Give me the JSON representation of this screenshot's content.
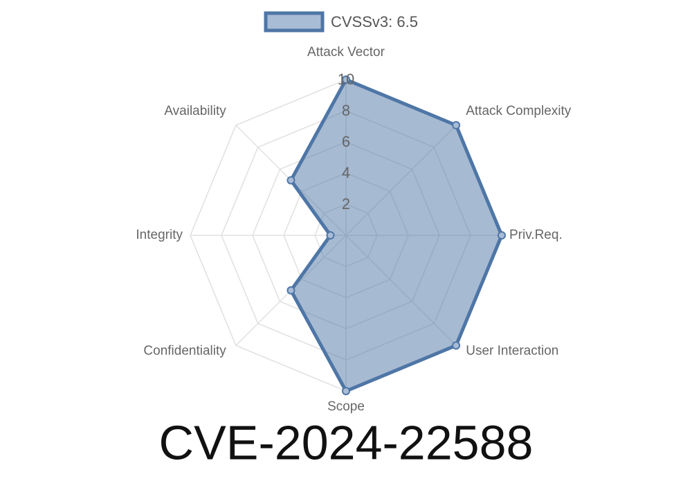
{
  "chart_data": {
    "type": "radar",
    "title": "CVE-2024-22588",
    "categories": [
      "Attack Vector",
      "Attack Complexity",
      "Priv.Req.",
      "User Interaction",
      "Scope",
      "Confidentiality",
      "Integrity",
      "Availability"
    ],
    "series": [
      {
        "name": "CVSSv3: 6.5",
        "color": "#4e76a6",
        "values": [
          10,
          10,
          10,
          10,
          10,
          5,
          1,
          5
        ]
      }
    ],
    "ylim": [
      0,
      10
    ],
    "yticks": [
      2,
      4,
      6,
      8,
      10
    ],
    "grid": true,
    "legend": "top"
  }
}
